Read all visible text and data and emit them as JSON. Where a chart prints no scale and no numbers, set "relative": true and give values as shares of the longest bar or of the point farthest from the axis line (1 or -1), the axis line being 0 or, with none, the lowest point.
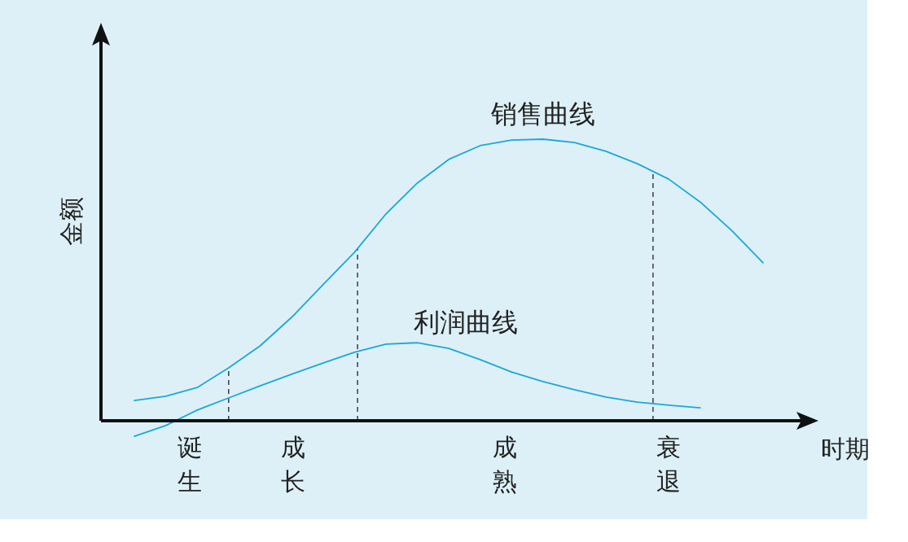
{
  "chart_data": {
    "type": "line",
    "relative": true,
    "xlabel": "时期",
    "ylabel": "金额",
    "categories": [
      null,
      null,
      null,
      null,
      null,
      null,
      null,
      null,
      null,
      null,
      null,
      null,
      null,
      null,
      null,
      null,
      null,
      null,
      null,
      null,
      null
    ],
    "series": [
      {
        "name": "销售曲线",
        "color": "#1ba8d8",
        "values": [
          0.072,
          0.087,
          0.118,
          0.188,
          0.266,
          0.367,
          0.483,
          0.598,
          0.734,
          0.844,
          0.928,
          0.977,
          0.997,
          1,
          0.988,
          0.957,
          0.913,
          0.858,
          0.777,
          0.676,
          0.561
        ]
      },
      {
        "name": "利润曲线",
        "color": "#1ba8d8",
        "values": [
          -0.055,
          -0.017,
          0.038,
          0.081,
          0.124,
          0.165,
          0.205,
          0.243,
          0.272,
          0.277,
          0.257,
          0.217,
          0.173,
          0.139,
          0.11,
          0.084,
          0.066,
          0.055,
          0.046,
          null,
          null
        ]
      }
    ],
    "annotations": [
      "诞生",
      "成长",
      "成熟",
      "衰退"
    ],
    "marker": "none",
    "line_style": "solid"
  }
}
